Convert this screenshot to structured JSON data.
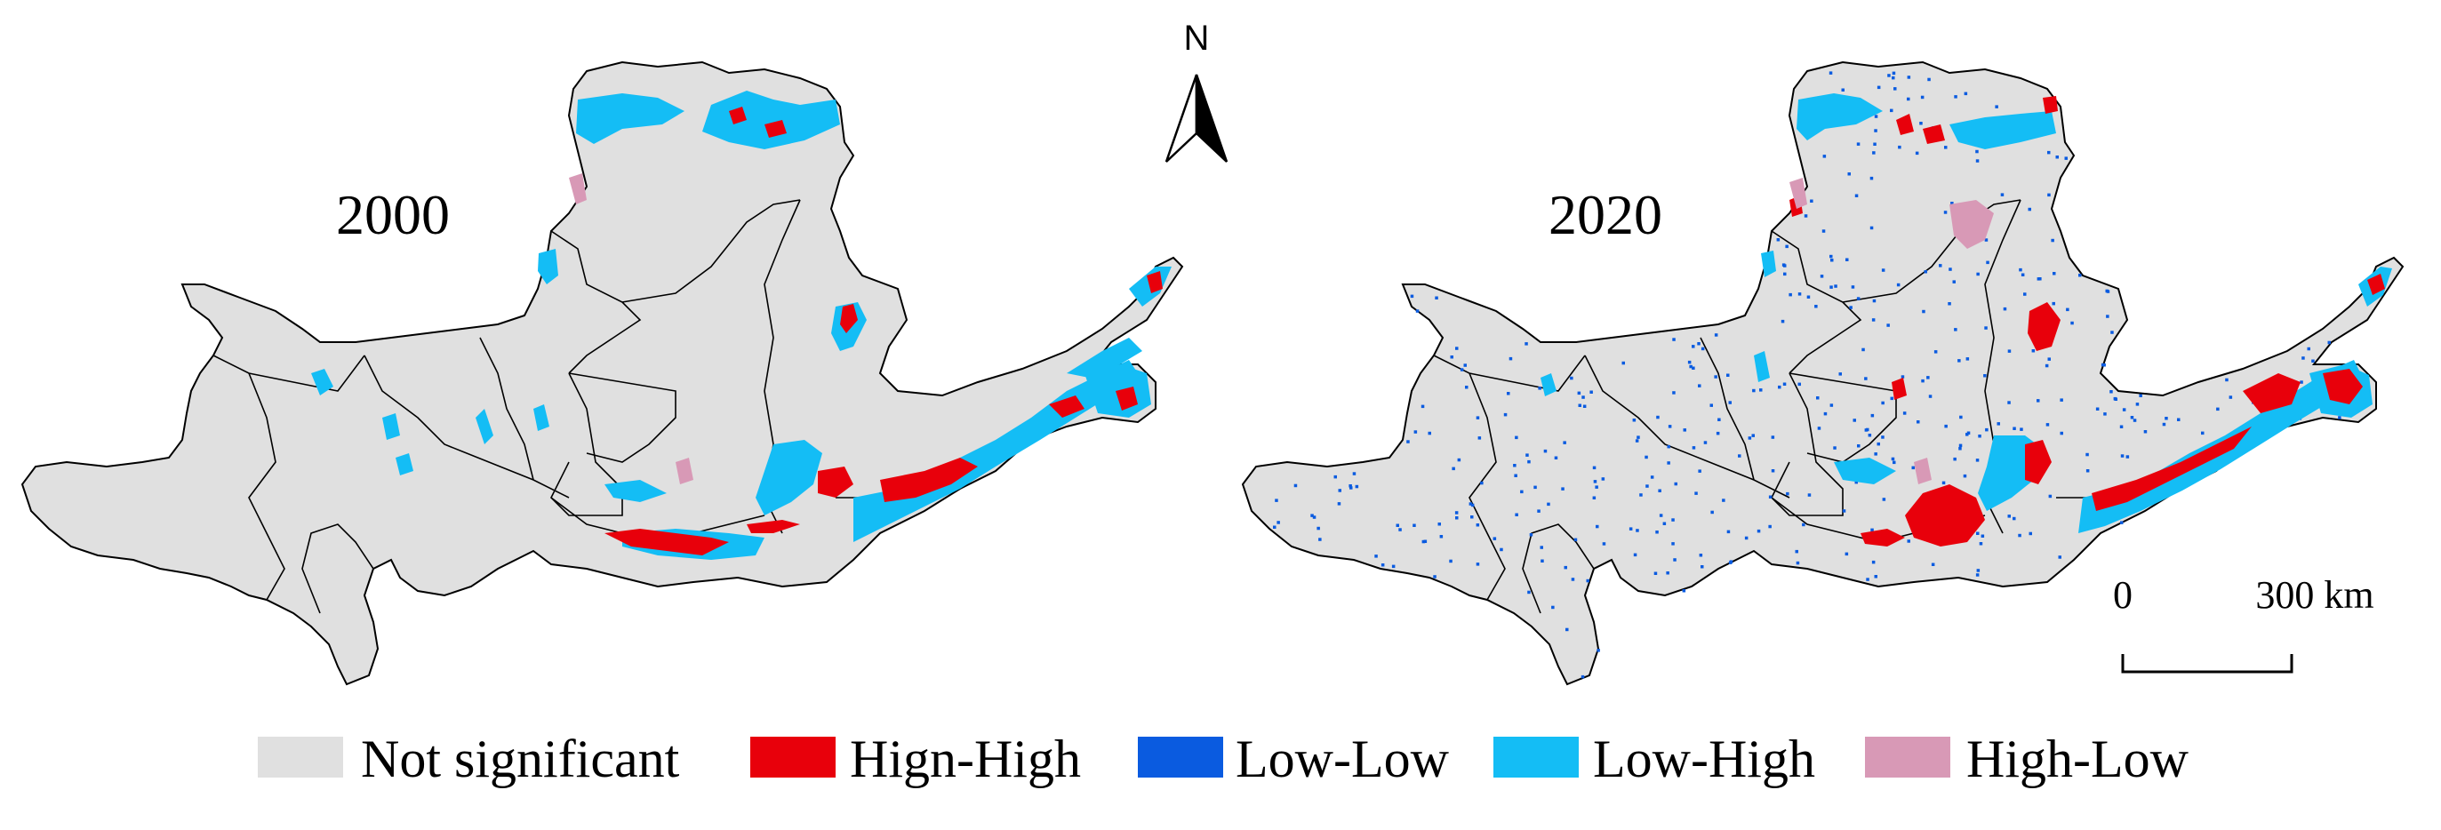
{
  "figure": {
    "maps": [
      {
        "year_label": "2000"
      },
      {
        "year_label": "2020"
      }
    ],
    "north_arrow": {
      "label": "N"
    },
    "scale_bar": {
      "start_label": "0",
      "end_label": "300 km"
    },
    "legend": {
      "items": [
        {
          "label": "Not significant",
          "color": "#e0e0e0"
        },
        {
          "label": "Hign-High",
          "color": "#e8000b"
        },
        {
          "label": "Low-Low",
          "color": "#0a5be0"
        },
        {
          "label": "Low-High",
          "color": "#14bdf5"
        },
        {
          "label": "High-Low",
          "color": "#d899b6"
        }
      ]
    }
  }
}
